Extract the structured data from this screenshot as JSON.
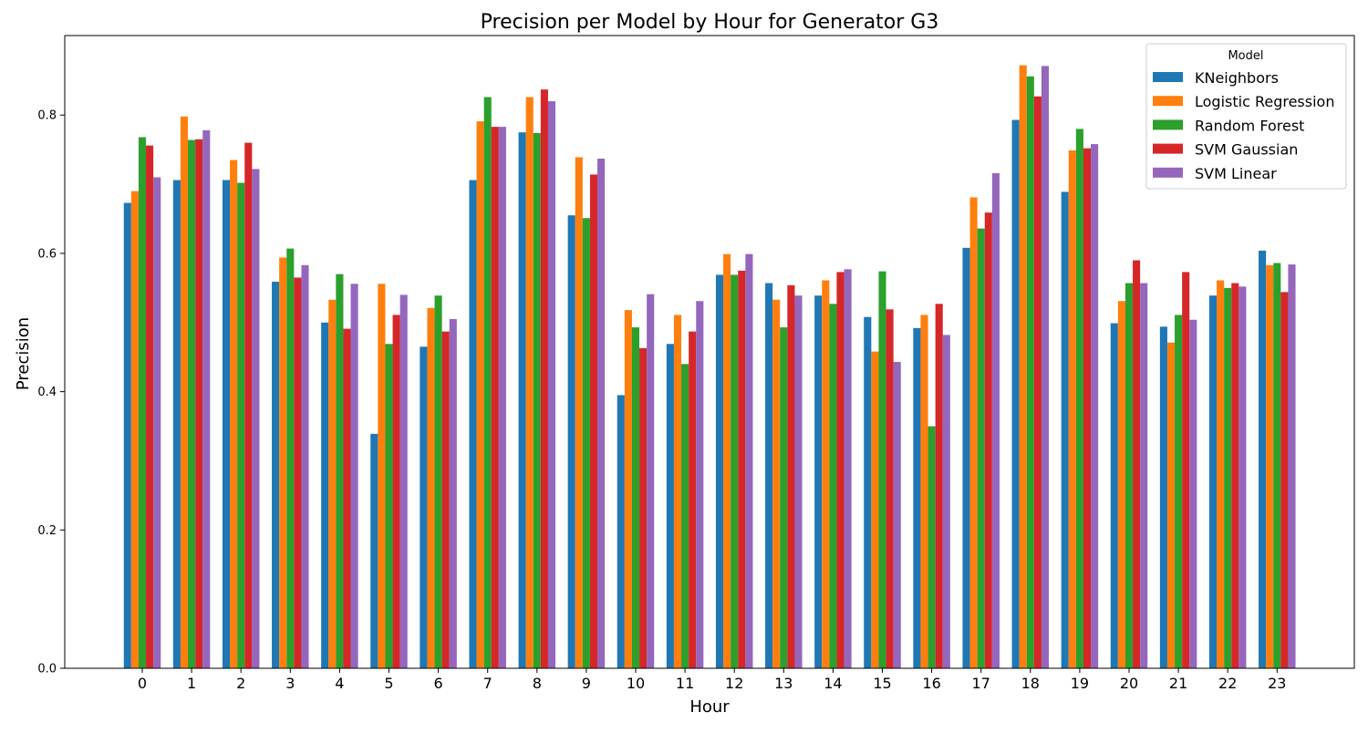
{
  "chart_data": {
    "type": "bar",
    "title": "Precision per Model by Hour for Generator G3",
    "xlabel": "Hour",
    "ylabel": "Precision",
    "ylim": [
      0,
      0.915
    ],
    "yticks": [
      0.0,
      0.2,
      0.4,
      0.6,
      0.8
    ],
    "ytick_labels": [
      "0.0",
      "0.2",
      "0.4",
      "0.6",
      "0.8"
    ],
    "grid": false,
    "legend": {
      "title": "Model",
      "placement": "top-right"
    },
    "categories": [
      "0",
      "1",
      "2",
      "3",
      "4",
      "5",
      "6",
      "7",
      "8",
      "9",
      "10",
      "11",
      "12",
      "13",
      "14",
      "15",
      "16",
      "17",
      "18",
      "19",
      "20",
      "21",
      "22",
      "23"
    ],
    "series": [
      {
        "name": "KNeighbors",
        "color": "#1f77b4",
        "values": [
          0.673,
          0.706,
          0.706,
          0.559,
          0.5,
          0.339,
          0.465,
          0.706,
          0.775,
          0.655,
          0.395,
          0.469,
          0.569,
          0.557,
          0.539,
          0.508,
          0.492,
          0.608,
          0.793,
          0.689,
          0.499,
          0.494,
          0.539,
          0.604
        ]
      },
      {
        "name": "Logistic Regression",
        "color": "#ff7f0e",
        "values": [
          0.69,
          0.798,
          0.735,
          0.594,
          0.533,
          0.556,
          0.521,
          0.791,
          0.826,
          0.739,
          0.518,
          0.511,
          0.599,
          0.533,
          0.561,
          0.458,
          0.511,
          0.681,
          0.872,
          0.749,
          0.531,
          0.471,
          0.561,
          0.583
        ]
      },
      {
        "name": "Random Forest",
        "color": "#2ca02c",
        "values": [
          0.768,
          0.764,
          0.702,
          0.607,
          0.57,
          0.469,
          0.539,
          0.826,
          0.774,
          0.651,
          0.493,
          0.44,
          0.569,
          0.493,
          0.527,
          0.574,
          0.35,
          0.636,
          0.856,
          0.78,
          0.557,
          0.511,
          0.55,
          0.586
        ]
      },
      {
        "name": "SVM Gaussian",
        "color": "#d62728",
        "values": [
          0.756,
          0.765,
          0.76,
          0.565,
          0.491,
          0.511,
          0.487,
          0.783,
          0.837,
          0.714,
          0.463,
          0.487,
          0.575,
          0.554,
          0.573,
          0.519,
          0.527,
          0.659,
          0.827,
          0.752,
          0.59,
          0.573,
          0.557,
          0.544
        ]
      },
      {
        "name": "SVM Linear",
        "color": "#9467bd",
        "values": [
          0.71,
          0.778,
          0.722,
          0.583,
          0.556,
          0.54,
          0.505,
          0.783,
          0.82,
          0.737,
          0.541,
          0.531,
          0.599,
          0.539,
          0.577,
          0.443,
          0.482,
          0.716,
          0.871,
          0.758,
          0.557,
          0.504,
          0.552,
          0.584
        ]
      }
    ]
  }
}
